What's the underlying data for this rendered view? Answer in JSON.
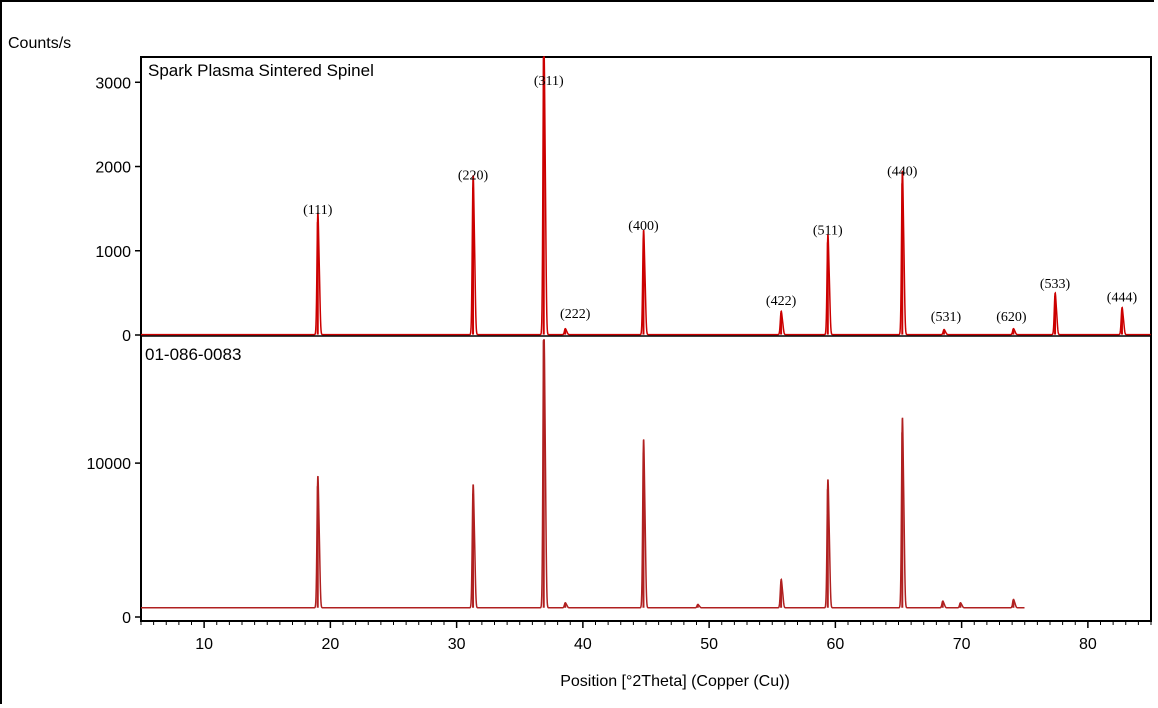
{
  "chart_data": {
    "type": "line",
    "y_unit_label": "Counts/s",
    "xlabel": "Position [°2Theta] (Copper (Cu))",
    "xlim": [
      5,
      85
    ],
    "x_ticks": [
      10,
      20,
      30,
      40,
      50,
      60,
      70,
      80
    ],
    "colors": {
      "sample": "#cc0000",
      "reference": "#b02020"
    },
    "panels": [
      {
        "name": "Spark Plasma Sintered Spinel",
        "ylim": [
          0,
          3300
        ],
        "y_ticks": [
          0,
          1000,
          2000,
          3000
        ],
        "baseline": 5,
        "peaks": [
          {
            "x": 19.0,
            "y": 1340,
            "hkl": "(111)"
          },
          {
            "x": 31.3,
            "y": 1750,
            "hkl": "(220)"
          },
          {
            "x": 36.9,
            "y": 3300,
            "hkl": "(311)"
          },
          {
            "x": 38.6,
            "y": 70,
            "hkl": "(222)"
          },
          {
            "x": 44.8,
            "y": 1150,
            "hkl": "(400)"
          },
          {
            "x": 55.7,
            "y": 260,
            "hkl": "(422)"
          },
          {
            "x": 59.4,
            "y": 1100,
            "hkl": "(511)"
          },
          {
            "x": 65.3,
            "y": 1800,
            "hkl": "(440)"
          },
          {
            "x": 68.6,
            "y": 60,
            "hkl": "(531)"
          },
          {
            "x": 74.1,
            "y": 70,
            "hkl": "(620)"
          },
          {
            "x": 77.4,
            "y": 460,
            "hkl": "(533)"
          },
          {
            "x": 82.7,
            "y": 300,
            "hkl": "(444)"
          }
        ]
      },
      {
        "name": "01-086-0083",
        "ylim": [
          0,
          18000
        ],
        "y_ticks": [
          0,
          10000
        ],
        "baseline": 600,
        "x_end": 75,
        "peaks": [
          {
            "x": 19.0,
            "y": 8500
          },
          {
            "x": 31.3,
            "y": 8000
          },
          {
            "x": 36.9,
            "y": 18000
          },
          {
            "x": 38.6,
            "y": 900
          },
          {
            "x": 44.8,
            "y": 10700
          },
          {
            "x": 49.1,
            "y": 800
          },
          {
            "x": 55.7,
            "y": 2300
          },
          {
            "x": 59.4,
            "y": 8300
          },
          {
            "x": 65.3,
            "y": 12000
          },
          {
            "x": 68.5,
            "y": 1000
          },
          {
            "x": 69.9,
            "y": 900
          },
          {
            "x": 74.1,
            "y": 1100
          }
        ]
      }
    ]
  }
}
